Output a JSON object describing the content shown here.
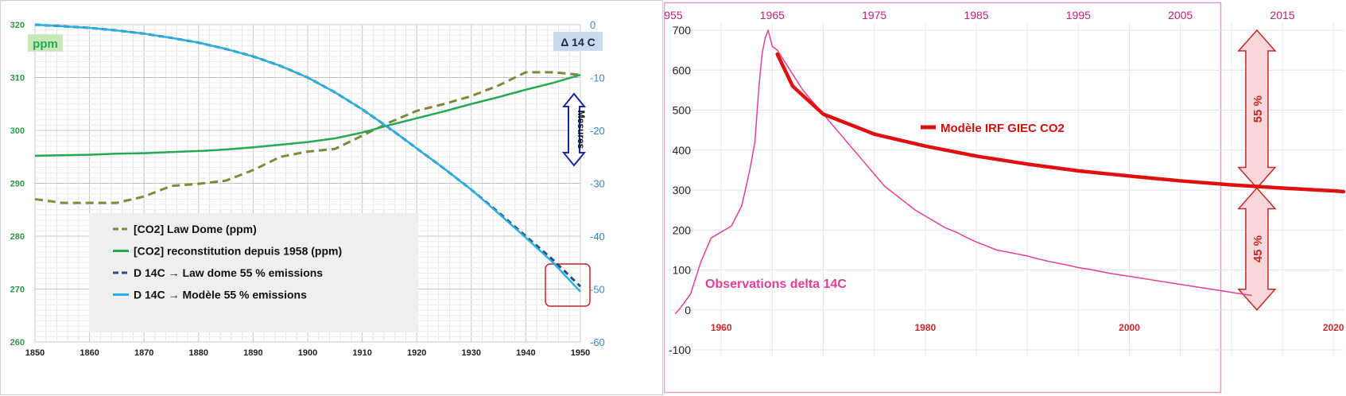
{
  "charts": [
    {
      "chart_data": {
        "type": "line",
        "x": [
          1850,
          1855,
          1860,
          1865,
          1870,
          1875,
          1880,
          1885,
          1890,
          1895,
          1900,
          1905,
          1910,
          1915,
          1920,
          1925,
          1930,
          1935,
          1940,
          1945,
          1950
        ],
        "xlim": [
          1850,
          1950
        ],
        "ylim_left": [
          260,
          320
        ],
        "ylim_right": [
          -60,
          0
        ],
        "x_ticks": [
          "1850",
          "1860",
          "1870",
          "1880",
          "1890",
          "1900",
          "1910",
          "1920",
          "1930",
          "1940",
          "1950"
        ],
        "y_ticks_left": [
          "260",
          "270",
          "280",
          "290",
          "300",
          "310",
          "320"
        ],
        "y_ticks_right": [
          "-60",
          "-50",
          "-40",
          "-30",
          "-20",
          "-10",
          "0"
        ],
        "left_unit_label": "ppm",
        "right_unit_label": "Δ 14 C",
        "arrow_label": "Mesures",
        "grid": true,
        "legend_position": "bottom-left",
        "series": [
          {
            "name": "[CO2] Law Dome (ppm)",
            "axis": "left",
            "color": "#7a8b3a",
            "style": "dashed",
            "values": [
              287,
              286.3,
              286.3,
              286.3,
              287.5,
              289.5,
              289.9,
              290.5,
              292.5,
              295,
              296,
              296.5,
              299,
              301.5,
              303.7,
              305,
              306.5,
              308.5,
              311,
              311,
              310.5
            ]
          },
          {
            "name": "[CO2] reconstitution depuis 1958 (ppm)",
            "axis": "left",
            "color": "#22aa55",
            "style": "solid",
            "values": [
              295.2,
              295.3,
              295.4,
              295.6,
              295.7,
              295.9,
              296.1,
              296.4,
              296.8,
              297.3,
              297.8,
              298.5,
              299.6,
              301,
              302.3,
              303.6,
              305,
              306.3,
              307.7,
              309,
              310.5
            ]
          },
          {
            "name": "D 14C → Law dome   55 % emissions",
            "axis": "right",
            "color": "#2a4d7a",
            "style": "dashed",
            "values": [
              0,
              -0.3,
              -0.6,
              -1.1,
              -1.7,
              -2.5,
              -3.4,
              -4.6,
              -6.0,
              -7.8,
              -10.0,
              -12.8,
              -16.0,
              -19.6,
              -23.4,
              -27.2,
              -31.2,
              -35.5,
              -40.0,
              -44.5,
              -49.5
            ]
          },
          {
            "name": "D 14C → Modèle   55 % emissions",
            "axis": "right",
            "color": "#2ab0e0",
            "style": "solid",
            "values": [
              0,
              -0.3,
              -0.6,
              -1.1,
              -1.7,
              -2.5,
              -3.4,
              -4.6,
              -6.0,
              -7.8,
              -10.0,
              -12.8,
              -16.0,
              -19.6,
              -23.4,
              -27.2,
              -31.2,
              -35.7,
              -40.3,
              -45.0,
              -50.5
            ]
          }
        ]
      }
    },
    {
      "chart_data": {
        "type": "line",
        "xlim": [
          1955,
          2021
        ],
        "ylim": [
          -100,
          700
        ],
        "x_ticks_top": [
          "1955",
          "1965",
          "1975",
          "1985",
          "1995",
          "2005",
          "2015"
        ],
        "x_ticks_bottom": [
          "1960",
          "1980",
          "2000",
          "2020"
        ],
        "y_ticks": [
          "-100",
          "0",
          "100",
          "200",
          "300",
          "400",
          "500",
          "600",
          "700"
        ],
        "grid": true,
        "arrow_labels": [
          "55 %",
          "45 %"
        ],
        "series": [
          {
            "name": "Observations  delta 14C",
            "color": "#e0409a",
            "style": "solid",
            "x": [
              1955.5,
              1956,
              1957,
              1958,
              1959,
              1960,
              1961,
              1962,
              1962.8,
              1963.3,
              1963.7,
              1964,
              1964.3,
              1964.6,
              1965,
              1965.5,
              1966,
              1967,
              1968,
              1969,
              1970,
              1971,
              1972,
              1973,
              1974,
              1975,
              1976,
              1977,
              1978,
              1979,
              1980,
              1981,
              1982,
              1983,
              1984,
              1985,
              1986,
              1987,
              1988,
              1989,
              1990,
              1991,
              1992,
              1993,
              1994,
              1995,
              1996,
              1997,
              1998,
              1999,
              2000,
              2001,
              2002,
              2003,
              2004,
              2005,
              2006,
              2007,
              2008,
              2009,
              2010,
              2011,
              2012
            ],
            "y": [
              -10,
              5,
              40,
              120,
              180,
              195,
              210,
              260,
              350,
              420,
              560,
              640,
              680,
              700,
              660,
              650,
              630,
              590,
              550,
              520,
              490,
              460,
              430,
              400,
              370,
              340,
              310,
              290,
              270,
              250,
              235,
              220,
              205,
              195,
              182,
              170,
              160,
              150,
              145,
              140,
              135,
              128,
              122,
              117,
              112,
              106,
              102,
              97,
              92,
              88,
              84,
              80,
              76,
              72,
              68,
              64,
              60,
              56,
              52,
              48,
              44,
              40,
              36
            ]
          },
          {
            "name": "Modèle IRF GIEC  CO2",
            "color": "#e01010",
            "style": "solid",
            "x": [
              1965.5,
              1967,
              1970,
              1975,
              1980,
              1985,
              1990,
              1995,
              2000,
              2005,
              2010,
              2015,
              2020,
              2021
            ],
            "y": [
              640,
              560,
              490,
              440,
              410,
              385,
              365,
              348,
              335,
              323,
              313,
              305,
              298,
              296
            ]
          }
        ]
      }
    }
  ]
}
